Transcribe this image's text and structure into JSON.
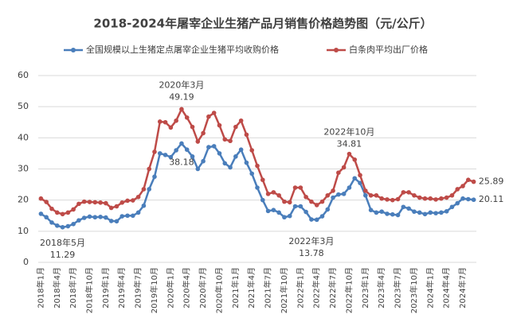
{
  "chart_data": {
    "type": "line",
    "title": "2018-2024年屠宰企业生猪产品月销售价格趋势图（元/公斤）",
    "categories": [
      "2018年1月",
      null,
      null,
      "2018年4月",
      null,
      null,
      "2018年7月",
      null,
      null,
      "2018年10月",
      null,
      null,
      "2019年1月",
      null,
      null,
      "2019年4月",
      null,
      null,
      "2019年7月",
      null,
      null,
      "2019年10月",
      null,
      null,
      "2020年1月",
      null,
      null,
      "2020年4月",
      null,
      null,
      "2020年7月",
      null,
      null,
      "2020年10月",
      null,
      null,
      "2021年1月",
      null,
      null,
      "2021年4月",
      null,
      null,
      "2021年7月",
      null,
      null,
      "2021年10月",
      null,
      null,
      "2022年1月",
      null,
      null,
      "2022年4月",
      null,
      null,
      "2022年7月",
      null,
      null,
      "2022年10月",
      null,
      null,
      "2023年1月",
      null,
      null,
      "2023年4月",
      null,
      null,
      "2023年7月",
      null,
      null,
      "2023年10月",
      null,
      null,
      "2024年1月",
      null,
      null,
      "2024年4月",
      null,
      null,
      "2024年7月",
      null,
      null
    ],
    "series": [
      {
        "name": "全国规模以上生猪定点屠宰企业生猪平均收购价格",
        "color": "#4a7ebb",
        "values": [
          15.6,
          14.5,
          12.8,
          11.8,
          11.29,
          11.6,
          12.3,
          13.5,
          14.3,
          14.7,
          14.5,
          14.6,
          14.4,
          13.3,
          13.2,
          14.8,
          15.0,
          15.0,
          16.0,
          18.2,
          23.5,
          27.5,
          35.0,
          34.5,
          33.8,
          36.0,
          38.18,
          36.2,
          34.0,
          30.0,
          32.5,
          37.0,
          37.3,
          35.0,
          31.8,
          30.5,
          34.0,
          36.2,
          32.0,
          28.5,
          24.0,
          20.0,
          16.5,
          16.8,
          16.0,
          14.5,
          14.9,
          18.0,
          18.0,
          16.2,
          13.78,
          13.7,
          14.8,
          17.0,
          20.8,
          21.8,
          22.0,
          24.0,
          27.0,
          25.5,
          21.5,
          16.8,
          16.0,
          16.3,
          15.6,
          15.4,
          15.2,
          17.8,
          17.3,
          16.3,
          16.0,
          15.5,
          16.0,
          15.8,
          16.0,
          16.4,
          17.8,
          19.0,
          20.5,
          20.3,
          20.11
        ]
      },
      {
        "name": "白条肉平均出厂价格",
        "color": "#be4b48",
        "values": [
          20.5,
          19.4,
          17.2,
          16.0,
          15.5,
          16.0,
          17.0,
          18.8,
          19.5,
          19.4,
          19.3,
          19.2,
          19.0,
          17.5,
          18.0,
          19.2,
          19.8,
          19.9,
          21.0,
          23.5,
          30.0,
          35.5,
          45.2,
          45.0,
          43.3,
          45.5,
          49.19,
          46.5,
          43.5,
          38.8,
          41.5,
          46.8,
          48.0,
          44.0,
          39.5,
          39.0,
          43.5,
          45.5,
          41.0,
          36.0,
          31.0,
          26.5,
          22.0,
          22.5,
          21.5,
          19.5,
          19.3,
          24.0,
          24.0,
          21.0,
          19.5,
          18.4,
          19.5,
          21.5,
          23.0,
          28.8,
          30.5,
          34.81,
          33.0,
          28.0,
          23.0,
          21.5,
          21.5,
          20.5,
          20.2,
          20.0,
          20.3,
          22.5,
          22.5,
          21.5,
          20.8,
          20.5,
          20.5,
          20.2,
          20.5,
          20.8,
          21.5,
          23.5,
          24.5,
          26.5,
          25.89
        ]
      }
    ],
    "annotations": [
      "2018年5月",
      "2020年3月",
      "2022年3月",
      "2022年10月"
    ],
    "ylim": [
      0,
      60
    ],
    "yticks": [
      0,
      10,
      20,
      30,
      40,
      50,
      60
    ],
    "grid": true,
    "legend": "top"
  }
}
